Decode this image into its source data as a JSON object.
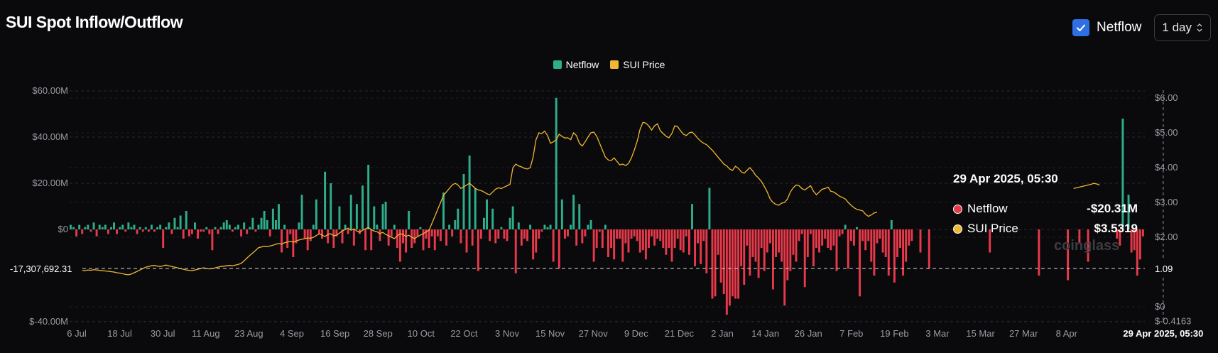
{
  "header": {
    "title": "SUI Spot Inflow/Outflow",
    "netflow_toggle_label": "Netflow",
    "interval_value": "1 day"
  },
  "legend": [
    {
      "label": "Netflow",
      "color": "#2eae8a"
    },
    {
      "label": "SUI Price",
      "color": "#f0b732"
    }
  ],
  "colors": {
    "inflow": "#2eae8a",
    "outflow": "#e8394a",
    "price": "#f0b732"
  },
  "tooltip": {
    "time": "29 Apr 2025, 05:30",
    "netflow_label": "Netflow",
    "netflow_value": "-$20.31M",
    "price_label": "SUI Price",
    "price_value": "$3.5319"
  },
  "watermark": "coinglass",
  "chart_data": {
    "type": "bar",
    "left_axis_ticks": [
      "$60.00M",
      "$40.00M",
      "$20.00M",
      "$0",
      "$-40.00M"
    ],
    "right_axis_ticks": [
      "$6.00",
      "$5.00",
      "$4.00",
      "$3.00",
      "$2.00",
      "$0",
      "$-0.4163"
    ],
    "x_ticks": [
      "6 Jul",
      "18 Jul",
      "30 Jul",
      "11 Aug",
      "23 Aug",
      "4 Sep",
      "16 Sep",
      "28 Sep",
      "10 Oct",
      "22 Oct",
      "3 Nov",
      "15 Nov",
      "27 Nov",
      "9 Dec",
      "21 Dec",
      "2 Jan",
      "14 Jan",
      "26 Jan",
      "7 Feb",
      "19 Feb",
      "3 Mar",
      "15 Mar",
      "27 Mar",
      "8 Apr"
    ],
    "x_crosshair_label": "29 Apr 2025, 05:30",
    "crosshair_left_label": "-17,307,692.31",
    "crosshair_right_label": "1.09",
    "ylim_left": [
      -40,
      60
    ],
    "ylim_right": [
      -0.4163,
      6.0
    ],
    "netflow_millions": [
      2,
      1,
      -3,
      2,
      -2,
      1,
      2,
      -1,
      3,
      -3,
      2,
      1,
      2,
      -2,
      1,
      3,
      -2,
      1,
      2,
      -1,
      3,
      1,
      2,
      -2,
      1,
      -1,
      1,
      -1,
      2,
      -1,
      1,
      2,
      -8,
      1,
      3,
      -2,
      5,
      1,
      6,
      -4,
      8,
      -3,
      -2,
      3,
      -4,
      -1,
      -1,
      1,
      -2,
      -9,
      1,
      -2,
      1,
      3,
      4,
      2,
      -1,
      1,
      2,
      -3,
      3,
      -2,
      1,
      5,
      -1,
      2,
      5,
      8,
      4,
      -3,
      9,
      4,
      11,
      -10,
      2,
      -8,
      -2,
      -12,
      -6,
      3,
      15,
      -4,
      -9,
      -5,
      2,
      13,
      -2,
      -4,
      25,
      -6,
      20,
      -8,
      -3,
      10,
      -6,
      2,
      -2,
      15,
      -7,
      11,
      -2,
      19,
      -9,
      28,
      -9,
      10,
      2,
      -5,
      11,
      12,
      -7,
      -3,
      2,
      -8,
      -14,
      -6,
      -10,
      8,
      -8,
      -6,
      -3,
      1,
      -9,
      -4,
      -8,
      -3,
      -9,
      -3,
      -5,
      16,
      -7,
      2,
      -3,
      4,
      9,
      -6,
      24,
      -10,
      32,
      -7,
      18,
      -18,
      -4,
      5,
      13,
      -5,
      9,
      -6,
      -4,
      1,
      -4,
      -5,
      5,
      10,
      -19,
      3,
      -7,
      -4,
      -5,
      2,
      -13,
      -10,
      -4,
      -1,
      2,
      1,
      2,
      -14,
      57,
      -17,
      13,
      -4,
      -3,
      2,
      15,
      -7,
      11,
      -6,
      -3,
      2,
      4,
      -14,
      -8,
      -1,
      -8,
      2,
      -12,
      -8,
      -13,
      -4,
      -4,
      -14,
      -6,
      -10,
      -4,
      -3,
      -5,
      -10,
      -9,
      -13,
      -8,
      -3,
      -7,
      -4,
      -5,
      -8,
      -11,
      -8,
      -14,
      -8,
      -4,
      -9,
      -10,
      -3,
      -11,
      11,
      -16,
      -6,
      -15,
      -5,
      -19,
      18,
      -30,
      -29,
      -11,
      -23,
      -28,
      -37,
      -33,
      -29,
      -30,
      -30,
      -16,
      -24,
      -7,
      -20,
      -12,
      -14,
      -21,
      -8,
      -18,
      -10,
      -6,
      -26,
      -12,
      -10,
      -14,
      -33,
      -22,
      -18,
      -11,
      -14,
      -5,
      -2,
      -25,
      -12,
      -2,
      -16,
      -8,
      -10,
      -7,
      -4,
      -8,
      -9,
      -7,
      -18,
      -3,
      -2,
      2,
      -17,
      -5,
      -7,
      1,
      -29,
      -5,
      -9,
      -5,
      -14,
      -20,
      -6,
      -4,
      -10,
      -12,
      -20,
      4,
      -23,
      -12,
      -8,
      -20,
      -14,
      -7,
      -5,
      0,
      0,
      -10,
      0,
      0,
      -17,
      0,
      0,
      0,
      0,
      0,
      0,
      0,
      0,
      0,
      0,
      0,
      0,
      0,
      0,
      0,
      0,
      0,
      0,
      0,
      0,
      -10,
      0,
      0,
      0,
      0,
      0,
      0,
      0,
      0,
      0,
      0,
      0,
      0,
      0,
      0,
      0,
      0,
      -20,
      0,
      0,
      0,
      0,
      0,
      0,
      0,
      0,
      0,
      -22,
      0,
      0,
      0,
      -6,
      0,
      0,
      -14,
      0,
      0,
      0,
      0,
      0,
      0,
      0,
      0,
      0,
      -4,
      -7,
      48,
      0,
      15,
      -10,
      -9,
      -20,
      -13,
      -3
    ],
    "price_usd": [
      1.04,
      1.02,
      1.03,
      1.04,
      1.05,
      1.04,
      1.06,
      1.05,
      1.07,
      1.06,
      1.05,
      1.04,
      1.03,
      1.02,
      1.01,
      1.0,
      0.98,
      0.97,
      0.95,
      0.93,
      0.92,
      0.94,
      0.98,
      1.02,
      1.06,
      1.1,
      1.14,
      1.16,
      1.18,
      1.19,
      1.17,
      1.16,
      1.18,
      1.2,
      1.18,
      1.16,
      1.14,
      1.12,
      1.1,
      1.08,
      1.06,
      1.05,
      1.04,
      1.06,
      1.08,
      1.1,
      1.12,
      1.1,
      1.09,
      1.1,
      1.12,
      1.14,
      1.16,
      1.17,
      1.18,
      1.19,
      1.18,
      1.2,
      1.22,
      1.25,
      1.32,
      1.4,
      1.48,
      1.55,
      1.62,
      1.7,
      1.72,
      1.74,
      1.73,
      1.75,
      1.77,
      1.8,
      1.82,
      1.8,
      1.84,
      1.86,
      1.88,
      1.86,
      1.89,
      1.92,
      1.94,
      1.96,
      1.98,
      1.97,
      2.0,
      2.05,
      2.1,
      2.06,
      2.02,
      2.08,
      2.1,
      2.04,
      2.06,
      2.12,
      2.18,
      2.22,
      2.26,
      2.2,
      2.24,
      2.18,
      2.14,
      2.2,
      2.24,
      2.28,
      2.22,
      2.18,
      2.16,
      2.1,
      2.14,
      2.08,
      2.04,
      2.0,
      1.96,
      2.04,
      2.1,
      2.08,
      2.02,
      2.06,
      2.0,
      1.96,
      2.02,
      2.06,
      2.1,
      2.16,
      2.2,
      2.4,
      2.6,
      2.8,
      3.0,
      3.2,
      3.3,
      3.4,
      3.5,
      3.55,
      3.5,
      3.4,
      3.45,
      3.5,
      3.55,
      3.48,
      3.4,
      3.36,
      3.34,
      3.3,
      3.25,
      3.22,
      3.3,
      3.38,
      3.42,
      3.4,
      3.44,
      3.48,
      3.52,
      4.0,
      4.1,
      4.05,
      4.02,
      3.98,
      3.96,
      4.0,
      4.3,
      4.8,
      5.0,
      4.98,
      5.05,
      4.92,
      4.7,
      4.74,
      4.8,
      4.96,
      4.9,
      4.85,
      4.86,
      4.8,
      5.0,
      4.92,
      4.7,
      4.62,
      4.74,
      4.88,
      5.0,
      5.02,
      4.9,
      4.7,
      4.5,
      4.3,
      4.22,
      4.2,
      4.28,
      4.18,
      4.08,
      4.1,
      4.06,
      4.12,
      4.28,
      4.5,
      4.76,
      5.1,
      5.3,
      5.28,
      5.2,
      5.08,
      5.2,
      5.26,
      5.06,
      4.98,
      4.9,
      4.86,
      4.98,
      5.2,
      5.18,
      5.06,
      4.96,
      4.92,
      5.0,
      5.02,
      4.94,
      4.84,
      4.76,
      4.7,
      4.66,
      4.58,
      4.5,
      4.4,
      4.3,
      4.2,
      4.1,
      4.05,
      3.96,
      3.92,
      4.04,
      3.98,
      3.88,
      3.84,
      3.92,
      4.0,
      3.9,
      3.78,
      3.7,
      3.6,
      3.46,
      3.3,
      3.1,
      3.0,
      2.94,
      2.92,
      2.98,
      3.0,
      3.1,
      3.3,
      3.42,
      3.5,
      3.48,
      3.4,
      3.36,
      3.42,
      3.48,
      3.32,
      3.22,
      3.3,
      3.38,
      3.4,
      3.44,
      3.32,
      3.3,
      3.24,
      3.18,
      3.14,
      3.1,
      3.0,
      2.92,
      2.85,
      2.8,
      2.78,
      2.76,
      2.66,
      2.6,
      2.64,
      2.7,
      2.72,
      null,
      null,
      null,
      null,
      null,
      null,
      null,
      null,
      null,
      null,
      null,
      null,
      null,
      null,
      null,
      null,
      null,
      null,
      null,
      null,
      null,
      null,
      null,
      null,
      null,
      null,
      null,
      null,
      null,
      null,
      null,
      null,
      null,
      null,
      null,
      null,
      null,
      null,
      null,
      null,
      null,
      null,
      null,
      null,
      null,
      null,
      null,
      null,
      null,
      null,
      null,
      null,
      null,
      null,
      null,
      null,
      null,
      null,
      null,
      null,
      null,
      null,
      null,
      null,
      null,
      null,
      null,
      3.4,
      3.42,
      3.44,
      3.46,
      3.48,
      3.5,
      3.52,
      3.55,
      3.53,
      3.5
    ],
    "tooltip_index": 378
  }
}
